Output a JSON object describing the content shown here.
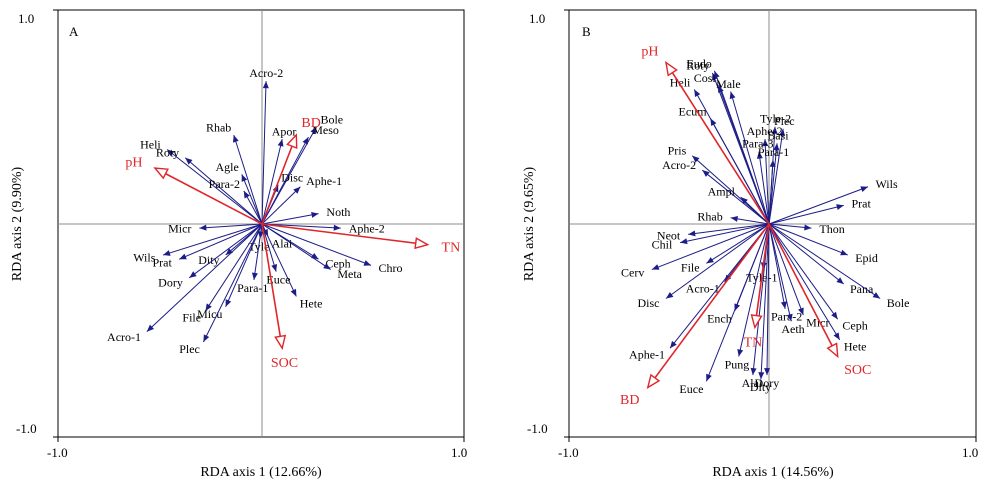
{
  "chart_data": [
    {
      "type": "scatter",
      "panel": "A",
      "xlabel": "RDA axis 1 (12.66%)",
      "ylabel": "RDA axis 2 (9.90%)",
      "xlim": [
        -1.0,
        1.0
      ],
      "ylim": [
        -1.0,
        1.0
      ],
      "xticks": [
        "-1.0",
        "1.0"
      ],
      "yticks": [
        "1.0",
        "-1.0"
      ],
      "grid": false,
      "env_vectors": [
        {
          "name": "pH",
          "x": -0.53,
          "y": 0.27
        },
        {
          "name": "BD",
          "x": 0.17,
          "y": 0.43
        },
        {
          "name": "TN",
          "x": 0.82,
          "y": -0.1
        },
        {
          "name": "SOC",
          "x": 0.1,
          "y": -0.6
        }
      ],
      "species": [
        {
          "name": "Acro-2",
          "x": 0.02,
          "y": 0.69
        },
        {
          "name": "Bole",
          "x": 0.27,
          "y": 0.47
        },
        {
          "name": "Meso",
          "x": 0.23,
          "y": 0.42
        },
        {
          "name": "Apor",
          "x": 0.1,
          "y": 0.41
        },
        {
          "name": "Rhab",
          "x": -0.14,
          "y": 0.43
        },
        {
          "name": "Heli",
          "x": -0.47,
          "y": 0.36
        },
        {
          "name": "Roty",
          "x": -0.38,
          "y": 0.32
        },
        {
          "name": "Agle",
          "x": -0.1,
          "y": 0.24
        },
        {
          "name": "Para-2",
          "x": -0.09,
          "y": 0.16
        },
        {
          "name": "Disc",
          "x": 0.08,
          "y": 0.19
        },
        {
          "name": "Aphe-1",
          "x": 0.19,
          "y": 0.18
        },
        {
          "name": "Noth",
          "x": 0.28,
          "y": 0.05
        },
        {
          "name": "Aphe-2",
          "x": 0.39,
          "y": -0.02
        },
        {
          "name": "Ceph",
          "x": 0.28,
          "y": -0.17
        },
        {
          "name": "Chro",
          "x": 0.54,
          "y": -0.2
        },
        {
          "name": "Meta",
          "x": 0.34,
          "y": -0.22
        },
        {
          "name": "Hete",
          "x": 0.17,
          "y": -0.35
        },
        {
          "name": "Euce",
          "x": 0.07,
          "y": -0.23
        },
        {
          "name": "Alai",
          "x": 0.03,
          "y": -0.06
        },
        {
          "name": "Tyle",
          "x": -0.01,
          "y": -0.07
        },
        {
          "name": "Micr",
          "x": -0.31,
          "y": -0.02
        },
        {
          "name": "Wils",
          "x": -0.49,
          "y": -0.15
        },
        {
          "name": "Prat",
          "x": -0.41,
          "y": -0.17
        },
        {
          "name": "Dity",
          "x": -0.18,
          "y": -0.15
        },
        {
          "name": "Dory",
          "x": -0.36,
          "y": -0.26
        },
        {
          "name": "Para-1",
          "x": -0.04,
          "y": -0.27
        },
        {
          "name": "File",
          "x": -0.28,
          "y": -0.42
        },
        {
          "name": "Micu",
          "x": -0.18,
          "y": -0.4
        },
        {
          "name": "Acro-1",
          "x": -0.57,
          "y": -0.52
        },
        {
          "name": "Plec",
          "x": -0.29,
          "y": -0.57
        }
      ]
    },
    {
      "type": "scatter",
      "panel": "B",
      "xlabel": "RDA axis 1 (14.56%)",
      "ylabel": "RDA axis 2 (9.65%)",
      "xlim": [
        -1.0,
        1.0
      ],
      "ylim": [
        -1.0,
        1.0
      ],
      "xticks": [
        "-1.0",
        "1.0"
      ],
      "yticks": [
        "1.0",
        "-1.0"
      ],
      "grid": false,
      "env_vectors": [
        {
          "name": "pH",
          "x": -0.51,
          "y": 0.78
        },
        {
          "name": "BD",
          "x": -0.6,
          "y": -0.79
        },
        {
          "name": "TN",
          "x": -0.07,
          "y": -0.5
        },
        {
          "name": "SOC",
          "x": 0.34,
          "y": -0.64
        }
      ],
      "species": [
        {
          "name": "Roty",
          "x": -0.28,
          "y": 0.73
        },
        {
          "name": "Eudo",
          "x": -0.27,
          "y": 0.74
        },
        {
          "name": "Heli",
          "x": -0.37,
          "y": 0.65
        },
        {
          "name": "Cosi",
          "x": -0.25,
          "y": 0.67
        },
        {
          "name": "Male",
          "x": -0.19,
          "y": 0.64
        },
        {
          "name": "Ecum",
          "x": -0.29,
          "y": 0.51
        },
        {
          "name": "Tyle-2",
          "x": 0.03,
          "y": 0.47
        },
        {
          "name": "Plec",
          "x": 0.07,
          "y": 0.46
        },
        {
          "name": "Aphe-2",
          "x": -0.02,
          "y": 0.41
        },
        {
          "name": "Basi",
          "x": 0.04,
          "y": 0.39
        },
        {
          "name": "Para-3",
          "x": -0.05,
          "y": 0.35
        },
        {
          "name": "Para-1",
          "x": 0.02,
          "y": 0.31
        },
        {
          "name": "Pris",
          "x": -0.38,
          "y": 0.33
        },
        {
          "name": "Acro-2",
          "x": -0.33,
          "y": 0.26
        },
        {
          "name": "Ampl",
          "x": -0.14,
          "y": 0.13
        },
        {
          "name": "Rhab",
          "x": -0.19,
          "y": 0.03
        },
        {
          "name": "Wils",
          "x": 0.49,
          "y": 0.18
        },
        {
          "name": "Prat",
          "x": 0.37,
          "y": 0.09
        },
        {
          "name": "Thon",
          "x": 0.21,
          "y": -0.02
        },
        {
          "name": "Neot",
          "x": -0.4,
          "y": -0.05
        },
        {
          "name": "Chil",
          "x": -0.44,
          "y": -0.09
        },
        {
          "name": "File",
          "x": -0.31,
          "y": -0.19
        },
        {
          "name": "Epid",
          "x": 0.39,
          "y": -0.15
        },
        {
          "name": "Tyle-1",
          "x": -0.03,
          "y": -0.22
        },
        {
          "name": "Cerv",
          "x": -0.58,
          "y": -0.22
        },
        {
          "name": "Acro-1",
          "x": -0.22,
          "y": -0.28
        },
        {
          "name": "Pana",
          "x": 0.37,
          "y": -0.29
        },
        {
          "name": "Bole",
          "x": 0.55,
          "y": -0.36
        },
        {
          "name": "Disc",
          "x": -0.51,
          "y": -0.36
        },
        {
          "name": "Ench",
          "x": -0.17,
          "y": -0.42
        },
        {
          "name": "Para-2",
          "x": 0.08,
          "y": -0.41
        },
        {
          "name": "Micr",
          "x": 0.17,
          "y": -0.44
        },
        {
          "name": "Aeth",
          "x": 0.11,
          "y": -0.47
        },
        {
          "name": "Ceph",
          "x": 0.34,
          "y": -0.46
        },
        {
          "name": "Hete",
          "x": 0.35,
          "y": -0.56
        },
        {
          "name": "Aphe-1",
          "x": -0.49,
          "y": -0.6
        },
        {
          "name": "Pung",
          "x": -0.15,
          "y": -0.64
        },
        {
          "name": "Alai",
          "x": -0.08,
          "y": -0.73
        },
        {
          "name": "Dory",
          "x": -0.01,
          "y": -0.73
        },
        {
          "name": "Euce",
          "x": -0.31,
          "y": -0.76
        },
        {
          "name": "Dity",
          "x": -0.04,
          "y": -0.75
        }
      ]
    }
  ]
}
